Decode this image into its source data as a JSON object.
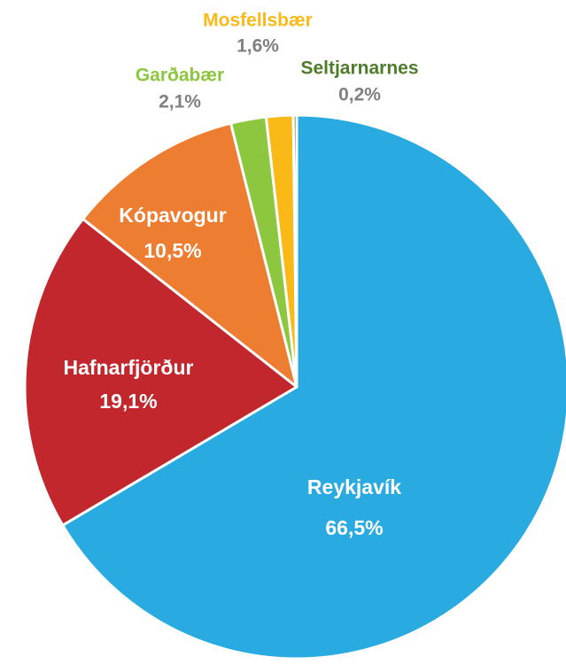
{
  "chart_data": {
    "type": "pie",
    "categories": [
      "Reykjavík",
      "Hafnarfjörður",
      "Kópavogur",
      "Garðabær",
      "Mosfellsbær",
      "Seltjarnarnes"
    ],
    "values": [
      66.5,
      19.1,
      10.5,
      2.1,
      1.6,
      0.2
    ],
    "value_labels": [
      "66,5%",
      "19,1%",
      "10,5%",
      "2,1%",
      "1,6%",
      "0,2%"
    ],
    "colors": [
      "#29abe2",
      "#c1272d",
      "#ed7d31",
      "#8dc63f",
      "#fbb917",
      "#4d7c2a"
    ]
  }
}
